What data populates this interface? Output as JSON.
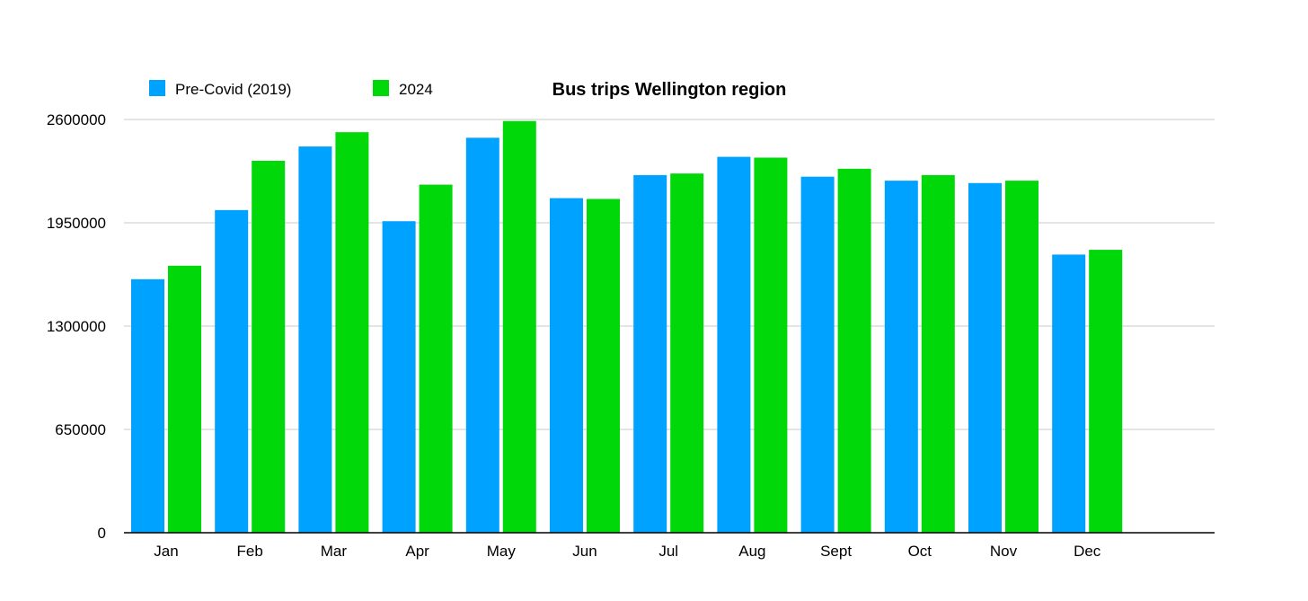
{
  "chart_data": {
    "type": "bar",
    "title": "Bus trips Wellington region",
    "xlabel": "",
    "ylabel": "",
    "categories": [
      "Jan",
      "Feb",
      "Mar",
      "Apr",
      "May",
      "Jun",
      "Jul",
      "Aug",
      "Sept",
      "Oct",
      "Nov",
      "Dec"
    ],
    "series": [
      {
        "name": "Pre-Covid (2019)",
        "color": "#00a2ff",
        "values": [
          1595000,
          2030000,
          2430000,
          1960000,
          2485000,
          2105000,
          2250000,
          2365000,
          2240000,
          2215000,
          2200000,
          1750000
        ]
      },
      {
        "name": "2024",
        "color": "#00d80a",
        "values": [
          1680000,
          2340000,
          2520000,
          2190000,
          2590000,
          2100000,
          2260000,
          2360000,
          2290000,
          2250000,
          2215000,
          1780000
        ]
      }
    ],
    "ylim": [
      0,
      2600000
    ],
    "yticks": [
      "0",
      "650000",
      "1300000",
      "1950000",
      "2600000"
    ],
    "grid": true,
    "legend_position": "top-left"
  }
}
